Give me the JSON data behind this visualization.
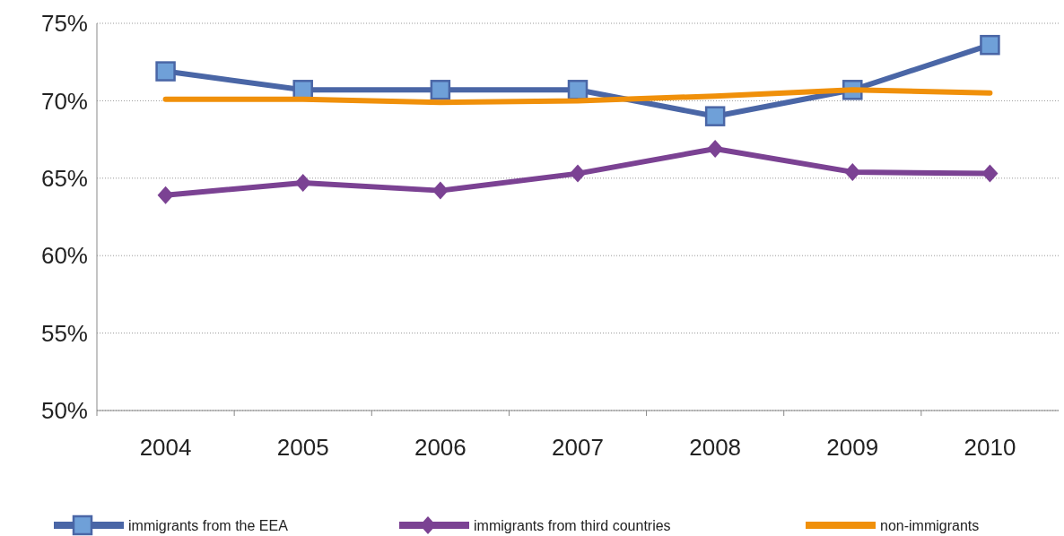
{
  "chart_data": {
    "type": "line",
    "categories": [
      "2004",
      "2005",
      "2006",
      "2007",
      "2008",
      "2009",
      "2010"
    ],
    "series": [
      {
        "name": "immigrants from the EEA",
        "color": "#4a66a6",
        "marker": "square",
        "values": [
          71.9,
          70.7,
          70.7,
          70.7,
          69.0,
          70.7,
          73.6
        ]
      },
      {
        "name": "immigrants from third countries",
        "color": "#7b4293",
        "marker": "diamond",
        "values": [
          63.9,
          64.7,
          64.2,
          65.3,
          66.9,
          65.4,
          65.3
        ]
      },
      {
        "name": "non-immigrants",
        "color": "#f0900a",
        "marker": "none",
        "values": [
          70.1,
          70.1,
          69.9,
          70.0,
          70.3,
          70.7,
          70.5
        ]
      }
    ],
    "ylim": [
      50,
      75
    ],
    "yticks": [
      {
        "value": 50,
        "label": "50%"
      },
      {
        "value": 55,
        "label": "55%"
      },
      {
        "value": 60,
        "label": "60%"
      },
      {
        "value": 65,
        "label": "65%"
      },
      {
        "value": 70,
        "label": "70%"
      },
      {
        "value": 75,
        "label": "75%"
      }
    ],
    "grid": "y",
    "legend": "bottom",
    "line_style": "solid"
  }
}
